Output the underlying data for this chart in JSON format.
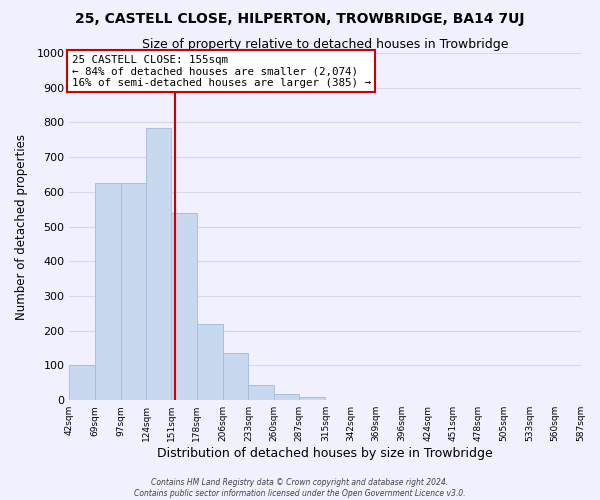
{
  "title": "25, CASTELL CLOSE, HILPERTON, TROWBRIDGE, BA14 7UJ",
  "subtitle": "Size of property relative to detached houses in Trowbridge",
  "xlabel": "Distribution of detached houses by size in Trowbridge",
  "ylabel": "Number of detached properties",
  "footer_line1": "Contains HM Land Registry data © Crown copyright and database right 2024.",
  "footer_line2": "Contains public sector information licensed under the Open Government Licence v3.0.",
  "bins": [
    42,
    69,
    97,
    124,
    151,
    178,
    206,
    233,
    260,
    287,
    315,
    342,
    369,
    396,
    424,
    451,
    478,
    505,
    533,
    560,
    587
  ],
  "bar_values": [
    100,
    625,
    625,
    785,
    540,
    220,
    135,
    45,
    18,
    8,
    0,
    0,
    0,
    0,
    0,
    0,
    0,
    0,
    0,
    0
  ],
  "bar_color": "#c8d8ee",
  "bar_edge_color": "#a8c0dc",
  "property_line_x": 155,
  "property_line_color": "#cc0000",
  "ylim": [
    0,
    1000
  ],
  "yticks": [
    0,
    100,
    200,
    300,
    400,
    500,
    600,
    700,
    800,
    900,
    1000
  ],
  "annotation_title": "25 CASTELL CLOSE: 155sqm",
  "annotation_line1": "← 84% of detached houses are smaller (2,074)",
  "annotation_line2": "16% of semi-detached houses are larger (385) →",
  "annotation_box_color": "#ffffff",
  "annotation_box_edge_color": "#cc0000",
  "grid_color": "#d8d8e8",
  "background_color": "#f0f0ff"
}
